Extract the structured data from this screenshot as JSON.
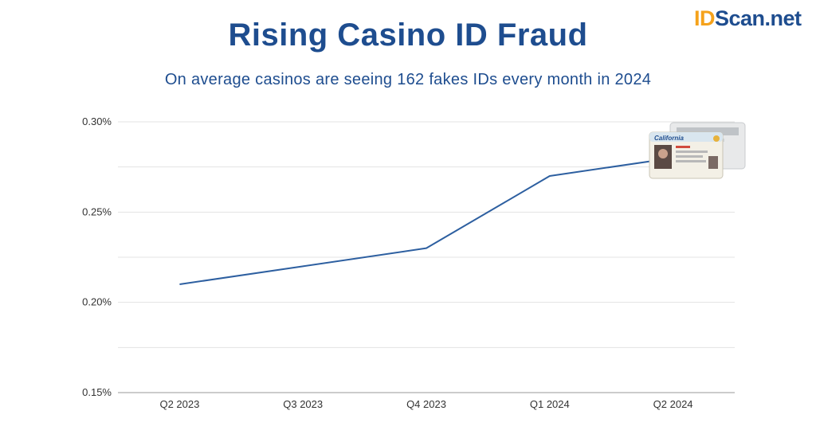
{
  "chart_data": {
    "type": "line",
    "title": "Rising Casino ID Fraud",
    "subtitle": "On average casinos are seeing 162 fakes IDs every month in 2024",
    "categories": [
      "Q2 2023",
      "Q3 2023",
      "Q4 2023",
      "Q1 2024",
      "Q2 2024"
    ],
    "series": [
      {
        "values": [
          0.21,
          0.22,
          0.23,
          0.27,
          0.28
        ]
      }
    ],
    "xlabel": "",
    "ylabel": "",
    "ylim": [
      0.15,
      0.3
    ],
    "y_ticks": [
      "0.30%",
      "0.25%",
      "0.20%",
      "0.15%"
    ],
    "y_tick_values": [
      0.3,
      0.25,
      0.2,
      0.15
    ],
    "grid": true,
    "legend": "none",
    "colors": {
      "title": "#1e4d8f",
      "subtitle": "#1e4d8f",
      "line": "#2d5fa0",
      "grid": "#e3e3e3",
      "axis": "#999999"
    }
  },
  "logo": {
    "accent": "ID",
    "rest": "Scan.net"
  },
  "decor": {
    "id_card_label": "California",
    "id_card_icon": "id-card-icon"
  }
}
